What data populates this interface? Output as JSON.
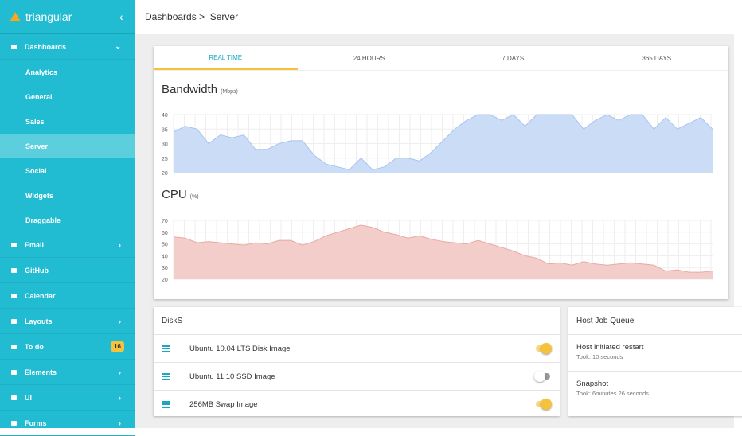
{
  "sidebar": {
    "brand": "triangular",
    "items": [
      {
        "label": "Dashboards",
        "children": [
          "Analytics",
          "General",
          "Sales",
          "Server",
          "Social",
          "Widgets",
          "Draggable"
        ]
      },
      {
        "label": "Email"
      },
      {
        "label": "GitHub"
      },
      {
        "label": "Calendar"
      },
      {
        "label": "Layouts"
      },
      {
        "label": "To do",
        "badge": 16
      },
      {
        "label": "Elements"
      },
      {
        "label": "UI"
      },
      {
        "label": "Forms"
      }
    ]
  },
  "header": {
    "breadcrumb": [
      "Dashboards >",
      "Server"
    ]
  },
  "tabs": [
    "REAL TIME",
    "24 HOURS",
    "7 DAYS",
    "365 DAYS"
  ],
  "chart_data": [
    {
      "type": "area",
      "title": "Bandwidth",
      "subtitle": "(Mbps)",
      "color": "#cbdcf7",
      "line_color": "#a9c4f0",
      "grid": true,
      "ylim": [
        20,
        40
      ],
      "yticks": [
        20,
        25,
        30,
        35,
        40
      ],
      "values": [
        34,
        36,
        35,
        30,
        33,
        32,
        33,
        28,
        28,
        30,
        31,
        31,
        26,
        23,
        22,
        21,
        25,
        21,
        22,
        25,
        25,
        24,
        27,
        31,
        35,
        38,
        40,
        40,
        38,
        40,
        36,
        40,
        40,
        40,
        40,
        35,
        38,
        40,
        38,
        40,
        40,
        35,
        39,
        35,
        37,
        39,
        35
      ]
    },
    {
      "type": "area",
      "title": "CPU",
      "subtitle": "(%)",
      "color": "#f3cdc9",
      "line_color": "#e9aaa3",
      "grid": true,
      "ylim": [
        20,
        70
      ],
      "yticks": [
        20,
        30,
        40,
        50,
        60,
        70
      ],
      "values": [
        56,
        55,
        51,
        52,
        51,
        50,
        49,
        51,
        50,
        53,
        53,
        49,
        52,
        57,
        60,
        63,
        66,
        64,
        60,
        58,
        55,
        57,
        54,
        52,
        51,
        50,
        53,
        50,
        47,
        44,
        40,
        38,
        33,
        34,
        32,
        35,
        33,
        32,
        33,
        34,
        33,
        32,
        27,
        28,
        26,
        26,
        27
      ]
    }
  ],
  "disks": {
    "title": "DiskS",
    "items": [
      {
        "name": "Ubuntu 10.04 LTS Disk Image",
        "on": true
      },
      {
        "name": "Ubuntu 11.10 SSD Image",
        "on": false
      },
      {
        "name": "256MB Swap Image",
        "on": true
      }
    ]
  },
  "jobs": {
    "title": "Host Job Queue",
    "items": [
      {
        "title": "Host initiated restart",
        "detail": "Took: 10 seconds"
      },
      {
        "title": "Snapshot",
        "detail": "Took: 6minutes 26 seconds"
      }
    ]
  }
}
